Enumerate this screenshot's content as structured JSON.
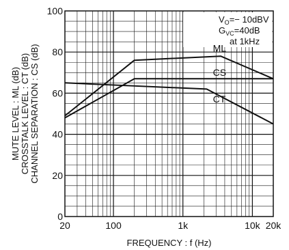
{
  "chart_data": {
    "type": "line",
    "xscale": "log",
    "xlim": [
      20,
      20000
    ],
    "ylim": [
      0,
      100
    ],
    "xlabel": "FREQUENCY : f (Hz)",
    "ylabel_lines": [
      "MUTE LEVEL : ML (dB)",
      "CROSSTALK LEVEL : CT (dB)",
      "CHANNEL SEPARATION : CS (dB)"
    ],
    "x_ticks": [
      {
        "value": 20,
        "label": "20"
      },
      {
        "value": 100,
        "label": "100"
      },
      {
        "value": 1000,
        "label": "1k"
      },
      {
        "value": 10000,
        "label": "10k"
      },
      {
        "value": 20000,
        "label": "20k"
      }
    ],
    "y_ticks": [
      {
        "value": 0,
        "label": "0"
      },
      {
        "value": 20,
        "label": "20"
      },
      {
        "value": 40,
        "label": "40"
      },
      {
        "value": 60,
        "label": "60"
      },
      {
        "value": 80,
        "label": "80"
      },
      {
        "value": 100,
        "label": "100"
      }
    ],
    "grid": true,
    "y_grid_step": 5,
    "conditions": {
      "vo_text": "V",
      "vo_sub": "O",
      "vo_value": "=− 10dBV",
      "gvc_text": "G",
      "gvc_sub": "VC",
      "gvc_value": "=40dB",
      "freq": "at 1kHz"
    },
    "series": [
      {
        "name": "ML",
        "x": [
          20,
          200,
          3500,
          20000
        ],
        "y": [
          49,
          76,
          78,
          67
        ],
        "label_at": [
          2700,
          80.2
        ]
      },
      {
        "name": "CS",
        "x": [
          20,
          200,
          20000
        ],
        "y": [
          48,
          67,
          67
        ],
        "label_at": [
          2700,
          68.5
        ]
      },
      {
        "name": "CT",
        "x": [
          20,
          2200,
          20000
        ],
        "y": [
          65,
          62,
          45
        ],
        "label_at": [
          2700,
          55.5
        ]
      }
    ]
  }
}
